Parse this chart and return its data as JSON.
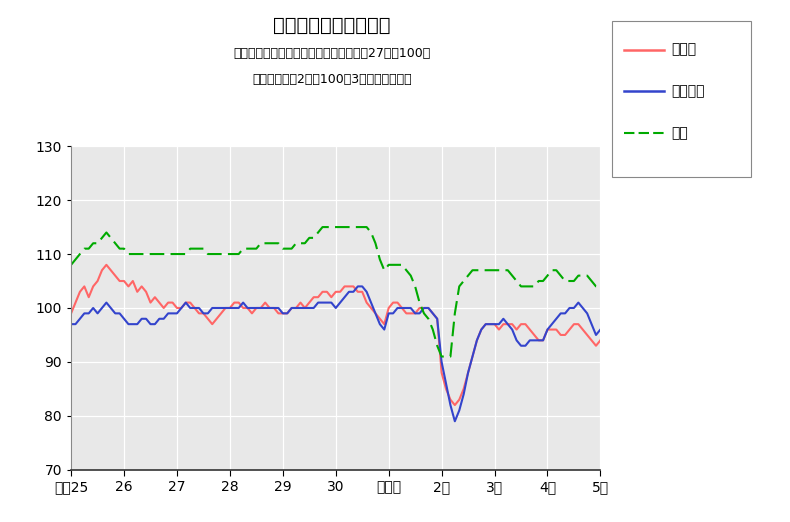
{
  "title": "鉱工業生産指数の推移",
  "subtitle1": "（季節調整済、鳥取県・中国地方：平成27年＝100、",
  "subtitle2": "　全国：令和2年＝100、3ヶ月移動平均）",
  "xlabel_ticks": [
    "平成25",
    "26",
    "27",
    "28",
    "29",
    "30",
    "令和元",
    "2年",
    "3年",
    "4年",
    "5年"
  ],
  "ylim": [
    70,
    130
  ],
  "yticks": [
    70,
    80,
    90,
    100,
    110,
    120,
    130
  ],
  "legend_labels": [
    "鳥取県",
    "中国地方",
    "全国"
  ],
  "colors": [
    "#FF6666",
    "#3344CC",
    "#00AA00"
  ],
  "background_color": "#E8E8E8",
  "tottori": [
    99,
    101,
    103,
    104,
    102,
    104,
    105,
    107,
    108,
    107,
    106,
    105,
    105,
    104,
    105,
    103,
    104,
    103,
    101,
    102,
    101,
    100,
    101,
    101,
    100,
    100,
    101,
    101,
    100,
    99,
    99,
    98,
    97,
    98,
    99,
    100,
    100,
    101,
    101,
    100,
    100,
    99,
    100,
    100,
    101,
    100,
    100,
    99,
    99,
    99,
    100,
    100,
    101,
    100,
    101,
    102,
    102,
    103,
    103,
    102,
    103,
    103,
    104,
    104,
    104,
    103,
    103,
    101,
    100,
    99,
    98,
    97,
    100,
    101,
    101,
    100,
    99,
    99,
    99,
    100,
    100,
    100,
    99,
    98,
    88,
    85,
    83,
    82,
    83,
    85,
    88,
    91,
    94,
    96,
    97,
    97,
    97,
    96,
    97,
    97,
    97,
    96,
    97,
    97,
    96,
    95,
    94,
    94,
    96,
    96,
    96,
    95,
    95,
    96,
    97,
    97,
    96,
    95,
    94,
    93,
    94,
    96,
    97
  ],
  "chugoku": [
    97,
    97,
    98,
    99,
    99,
    100,
    99,
    100,
    101,
    100,
    99,
    99,
    98,
    97,
    97,
    97,
    98,
    98,
    97,
    97,
    98,
    98,
    99,
    99,
    99,
    100,
    101,
    100,
    100,
    100,
    99,
    99,
    100,
    100,
    100,
    100,
    100,
    100,
    100,
    101,
    100,
    100,
    100,
    100,
    100,
    100,
    100,
    100,
    99,
    99,
    100,
    100,
    100,
    100,
    100,
    100,
    101,
    101,
    101,
    101,
    100,
    101,
    102,
    103,
    103,
    104,
    104,
    103,
    101,
    99,
    97,
    96,
    99,
    99,
    100,
    100,
    100,
    100,
    99,
    99,
    100,
    100,
    99,
    98,
    90,
    86,
    82,
    79,
    81,
    84,
    88,
    91,
    94,
    96,
    97,
    97,
    97,
    97,
    98,
    97,
    96,
    94,
    93,
    93,
    94,
    94,
    94,
    94,
    96,
    97,
    98,
    99,
    99,
    100,
    100,
    101,
    100,
    99,
    97,
    95,
    96,
    97,
    97
  ],
  "zenkoku": [
    108,
    109,
    110,
    111,
    111,
    112,
    112,
    113,
    114,
    113,
    112,
    111,
    111,
    110,
    110,
    110,
    110,
    110,
    110,
    110,
    110,
    110,
    110,
    110,
    110,
    110,
    110,
    111,
    111,
    111,
    111,
    110,
    110,
    110,
    110,
    110,
    110,
    110,
    110,
    111,
    111,
    111,
    111,
    112,
    112,
    112,
    112,
    112,
    111,
    111,
    111,
    112,
    112,
    112,
    113,
    113,
    114,
    115,
    115,
    115,
    115,
    115,
    115,
    115,
    115,
    115,
    115,
    115,
    114,
    112,
    109,
    107,
    108,
    108,
    108,
    108,
    107,
    106,
    104,
    101,
    99,
    98,
    96,
    93,
    91,
    91,
    91,
    99,
    104,
    105,
    106,
    107,
    107,
    107,
    107,
    107,
    107,
    107,
    107,
    107,
    106,
    105,
    104,
    104,
    104,
    104,
    105,
    105,
    106,
    107,
    107,
    106,
    105,
    105,
    105,
    106,
    106,
    106,
    105,
    104,
    104,
    105,
    105
  ]
}
